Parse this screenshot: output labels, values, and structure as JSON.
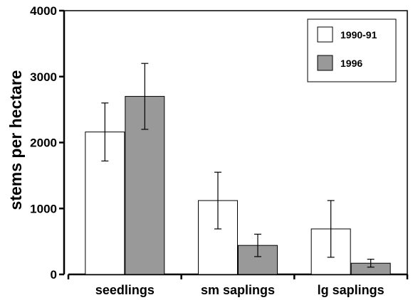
{
  "chart_data": {
    "type": "bar",
    "title": "",
    "xlabel": "",
    "ylabel": "stems per hectare",
    "ylim": [
      0,
      4000
    ],
    "yticks": [
      0,
      1000,
      2000,
      3000,
      4000
    ],
    "categories": [
      "seedlings",
      "sm saplings",
      "lg saplings"
    ],
    "series": [
      {
        "name": "1990-91",
        "color": "#ffffff",
        "values": [
          2160,
          1120,
          690
        ],
        "error": [
          440,
          430,
          430
        ]
      },
      {
        "name": "1996",
        "color": "#999999",
        "values": [
          2700,
          440,
          170
        ],
        "error": [
          500,
          170,
          60
        ]
      }
    ],
    "legend_position": "top-right",
    "grid": false
  }
}
